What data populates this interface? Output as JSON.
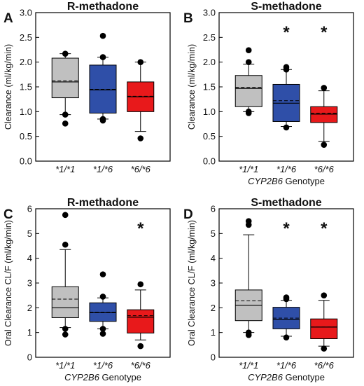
{
  "colors": {
    "wt": "#c0c0c0",
    "het": "#2f4fa8",
    "hom": "#e8191b",
    "frame": "#000000"
  },
  "chart_data": [
    {
      "panel": "A",
      "type": "box",
      "title": "R-methadone",
      "xlabel_italic": "",
      "xlabel_rest": "",
      "ylabel": "Clearance (ml/kg/min)",
      "ylim": [
        0,
        3.0
      ],
      "yticks": [
        "0.0",
        "0.5",
        "1.0",
        "1.5",
        "2.0",
        "2.5",
        "3.0"
      ],
      "categories": [
        "*1/*1",
        "*1/*6",
        "*6/*6"
      ],
      "series": [
        {
          "q1": 1.28,
          "median": 1.6,
          "mean": 1.62,
          "q3": 2.08,
          "whisker_low": 0.94,
          "whisker_high": 2.17,
          "outliers": [
            0.76,
            0.94,
            2.17
          ]
        },
        {
          "q1": 0.97,
          "median": 1.44,
          "mean": 1.45,
          "q3": 1.94,
          "whisker_low": 0.85,
          "whisker_high": 2.1,
          "outliers": [
            0.82,
            0.85,
            2.1,
            2.53
          ]
        },
        {
          "q1": 1.0,
          "median": 1.3,
          "mean": 1.31,
          "q3": 1.6,
          "whisker_low": 0.6,
          "whisker_high": 2.0,
          "outliers": [
            0.46,
            2.0
          ]
        }
      ],
      "significance": [
        "",
        "",
        ""
      ]
    },
    {
      "panel": "B",
      "type": "box",
      "title": "S-methadone",
      "xlabel_italic": "CYP2B6",
      "xlabel_rest": " Genotype",
      "ylabel": "Clearance (ml/kg/min)",
      "ylim": [
        0,
        3.0
      ],
      "yticks": [
        "0.0",
        "0.5",
        "1.0",
        "1.5",
        "2.0",
        "2.5",
        "3.0"
      ],
      "categories": [
        "*1/*1",
        "*1/*6",
        "*6/*6"
      ],
      "series": [
        {
          "q1": 1.1,
          "median": 1.47,
          "mean": 1.49,
          "q3": 1.73,
          "whisker_low": 1.0,
          "whisker_high": 1.96,
          "outliers": [
            0.97,
            1.0,
            2.0,
            2.24
          ]
        },
        {
          "q1": 0.8,
          "median": 1.17,
          "mean": 1.22,
          "q3": 1.55,
          "whisker_low": 0.7,
          "whisker_high": 1.85,
          "outliers": [
            0.68,
            1.85,
            1.9
          ]
        },
        {
          "q1": 0.78,
          "median": 0.95,
          "mean": 0.97,
          "q3": 1.1,
          "whisker_low": 0.4,
          "whisker_high": 1.42,
          "outliers": [
            0.33,
            1.48
          ]
        }
      ],
      "significance": [
        "",
        "*",
        "*"
      ]
    },
    {
      "panel": "C",
      "type": "box",
      "title": "R-methadone",
      "xlabel_italic": "CYP2B6",
      "xlabel_rest": " Genotype",
      "ylabel": "Oral Clearance CL/F (ml/kg/min)",
      "ylim": [
        0,
        6
      ],
      "yticks": [
        "0",
        "1",
        "2",
        "3",
        "4",
        "5",
        "6"
      ],
      "categories": [
        "*1/*1",
        "*1/*6",
        "*6/*6"
      ],
      "series": [
        {
          "q1": 1.6,
          "median": 2.0,
          "mean": 2.35,
          "q3": 2.85,
          "whisker_low": 1.2,
          "whisker_high": 4.35,
          "outliers": [
            0.92,
            1.15,
            4.55,
            5.75
          ]
        },
        {
          "q1": 1.45,
          "median": 1.8,
          "mean": 1.82,
          "q3": 2.2,
          "whisker_low": 1.15,
          "whisker_high": 2.4,
          "outliers": [
            0.95,
            1.15,
            2.45,
            3.35
          ]
        },
        {
          "q1": 0.98,
          "median": 1.62,
          "mean": 1.68,
          "q3": 1.92,
          "whisker_low": 0.7,
          "whisker_high": 2.72,
          "outliers": [
            0.45,
            2.95
          ]
        }
      ],
      "significance": [
        "",
        "",
        "*"
      ]
    },
    {
      "panel": "D",
      "type": "box",
      "title": "S-methadone",
      "xlabel_italic": "CYP2B6",
      "xlabel_rest": " Genotype",
      "ylabel": "Oral Clearance CL/F (ml/kg/min)",
      "ylim": [
        0,
        6
      ],
      "yticks": [
        "0",
        "1",
        "2",
        "3",
        "4",
        "5",
        "6"
      ],
      "categories": [
        "*1/*1",
        "*1/*6",
        "*6/*6"
      ],
      "series": [
        {
          "q1": 1.48,
          "median": 2.1,
          "mean": 2.28,
          "q3": 2.72,
          "whisker_low": 1.0,
          "whisker_high": 4.95,
          "outliers": [
            0.9,
            1.0,
            5.35,
            5.5
          ]
        },
        {
          "q1": 1.15,
          "median": 1.52,
          "mean": 1.58,
          "q3": 2.02,
          "whisker_low": 0.85,
          "whisker_high": 2.3,
          "outliers": [
            0.8,
            2.35,
            2.42
          ]
        },
        {
          "q1": 0.75,
          "median": 1.22,
          "mean": 1.22,
          "q3": 1.55,
          "whisker_low": 0.45,
          "whisker_high": 2.3,
          "outliers": [
            0.35,
            2.5
          ]
        }
      ],
      "significance": [
        "",
        "*",
        "*"
      ]
    }
  ]
}
